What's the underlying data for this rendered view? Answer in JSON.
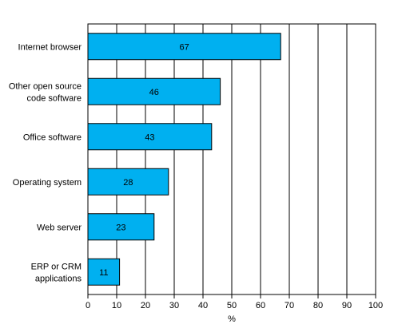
{
  "chart_data": {
    "type": "bar",
    "orientation": "horizontal",
    "categories": [
      [
        "Internet browser"
      ],
      [
        "Other open source",
        "code software"
      ],
      [
        "Office software"
      ],
      [
        "Operating system"
      ],
      [
        "Web server"
      ],
      [
        "ERP or CRM",
        "applications"
      ]
    ],
    "values": [
      67,
      46,
      43,
      28,
      23,
      11
    ],
    "data_labels": [
      "67",
      "46",
      "43",
      "28",
      "23",
      "11"
    ],
    "xlabel": "%",
    "xlim": [
      0,
      100
    ],
    "xticks": [
      "0",
      "10",
      "20",
      "30",
      "40",
      "50",
      "60",
      "70",
      "80",
      "90",
      "100"
    ],
    "grid": "vertical",
    "bar_color": "#00b0f0",
    "bar_stroke": "#000000"
  }
}
